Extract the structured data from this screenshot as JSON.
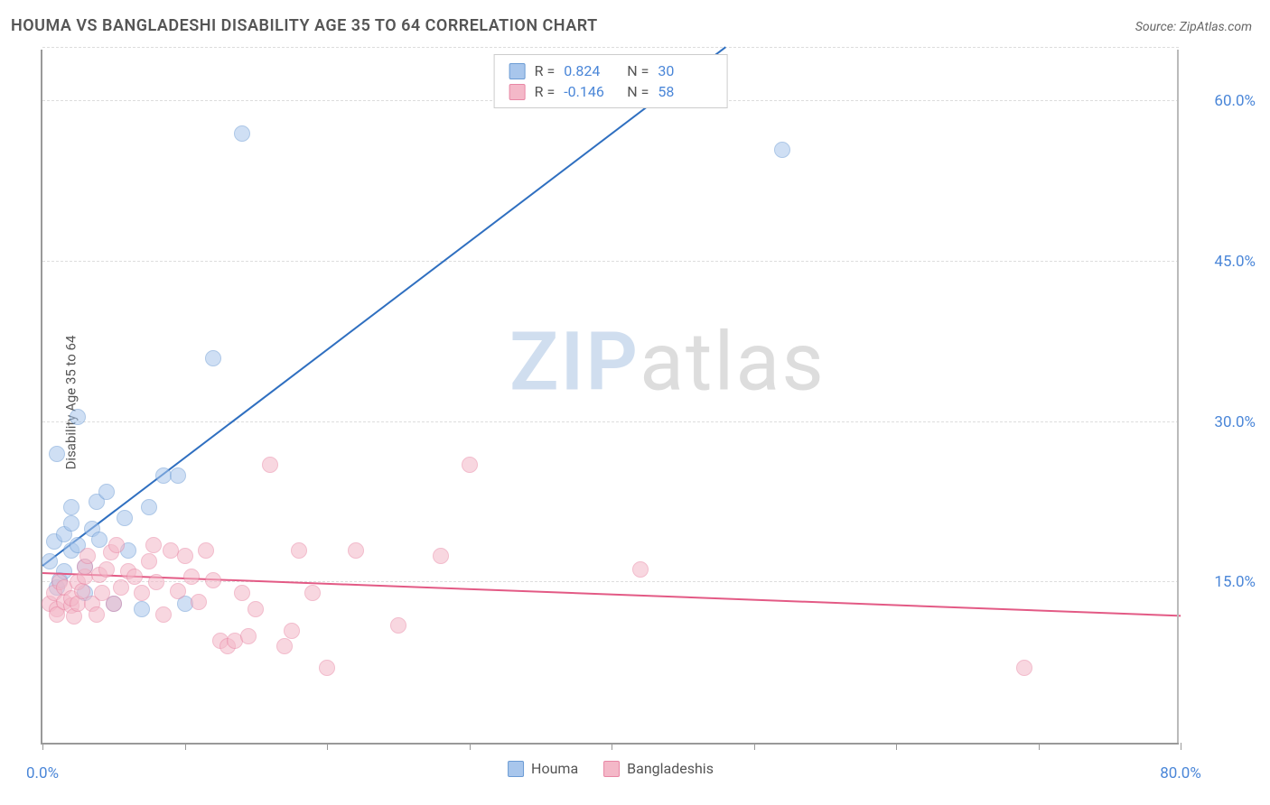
{
  "title": "HOUMA VS BANGLADESHI DISABILITY AGE 35 TO 64 CORRELATION CHART",
  "source": "Source: ZipAtlas.com",
  "y_axis_label": "Disability Age 35 to 64",
  "watermark": {
    "prefix": "ZIP",
    "suffix": "atlas"
  },
  "chart": {
    "type": "scatter",
    "background_color": "#ffffff",
    "grid_color": "#dddddd",
    "axis_color": "#999999",
    "xlim": [
      0,
      80
    ],
    "ylim": [
      0,
      65
    ],
    "x_ticks": [
      0,
      10,
      20,
      30,
      40,
      50,
      60,
      70,
      80
    ],
    "x_tick_labels": {
      "0": "0.0%",
      "80": "80.0%"
    },
    "y_gridlines": [
      15,
      30,
      45,
      60,
      65
    ],
    "y_tick_labels": {
      "15": "15.0%",
      "30": "30.0%",
      "45": "45.0%",
      "60": "60.0%"
    },
    "tick_label_color": "#4a86d8",
    "tick_label_fontsize": 17,
    "title_fontsize": 18,
    "title_color": "#555555",
    "marker_radius": 9,
    "marker_opacity": 0.55,
    "series": [
      {
        "name": "Houma",
        "color_fill": "#a8c6ec",
        "color_stroke": "#6b9bd4",
        "r": "0.824",
        "n": "30",
        "trend": {
          "x1": 0,
          "y1": 16.5,
          "x2": 48,
          "y2": 65,
          "color": "#2f6fc0",
          "width": 2
        },
        "points": [
          [
            0.5,
            17
          ],
          [
            0.8,
            18.8
          ],
          [
            1,
            14.5
          ],
          [
            1,
            27
          ],
          [
            1.2,
            15.2
          ],
          [
            1.5,
            19.5
          ],
          [
            1.5,
            16
          ],
          [
            2,
            20.5
          ],
          [
            2,
            18
          ],
          [
            2,
            22
          ],
          [
            2.5,
            18.5
          ],
          [
            3,
            14
          ],
          [
            3,
            16.5
          ],
          [
            3.5,
            20
          ],
          [
            3.8,
            22.5
          ],
          [
            4,
            19
          ],
          [
            4.5,
            23.5
          ],
          [
            5,
            13
          ],
          [
            5.8,
            21
          ],
          [
            6,
            18
          ],
          [
            7,
            12.5
          ],
          [
            7.5,
            22
          ],
          [
            8.5,
            25
          ],
          [
            9.5,
            25
          ],
          [
            10,
            13
          ],
          [
            2.5,
            30.5
          ],
          [
            12,
            36
          ],
          [
            14,
            57
          ],
          [
            52,
            55.5
          ]
        ]
      },
      {
        "name": "Bangladeshis",
        "color_fill": "#f4b8c8",
        "color_stroke": "#e886a4",
        "r": "-0.146",
        "n": "58",
        "trend": {
          "x1": 0,
          "y1": 15.8,
          "x2": 80,
          "y2": 11.8,
          "color": "#e35a85",
          "width": 2
        },
        "points": [
          [
            0.5,
            13
          ],
          [
            0.8,
            14
          ],
          [
            1,
            12.5
          ],
          [
            1,
            12
          ],
          [
            1.2,
            15
          ],
          [
            1.5,
            13.2
          ],
          [
            1.5,
            14.5
          ],
          [
            2,
            12.8
          ],
          [
            2,
            13.5
          ],
          [
            2.2,
            11.8
          ],
          [
            2.5,
            15
          ],
          [
            2.5,
            13
          ],
          [
            2.8,
            14.2
          ],
          [
            3,
            15.5
          ],
          [
            3,
            16.5
          ],
          [
            3.2,
            17.5
          ],
          [
            3.5,
            13
          ],
          [
            3.8,
            12
          ],
          [
            4,
            15.7
          ],
          [
            4.2,
            14
          ],
          [
            4.5,
            16.2
          ],
          [
            4.8,
            17.8
          ],
          [
            5,
            13
          ],
          [
            5.2,
            18.5
          ],
          [
            5.5,
            14.5
          ],
          [
            6,
            16
          ],
          [
            6.5,
            15.5
          ],
          [
            7,
            14
          ],
          [
            7.5,
            17
          ],
          [
            7.8,
            18.5
          ],
          [
            8,
            15
          ],
          [
            8.5,
            12
          ],
          [
            9,
            18
          ],
          [
            9.5,
            14.2
          ],
          [
            10,
            17.5
          ],
          [
            10.5,
            15.5
          ],
          [
            11,
            13.2
          ],
          [
            11.5,
            18
          ],
          [
            12,
            15.2
          ],
          [
            12.5,
            9.5
          ],
          [
            13,
            9
          ],
          [
            13.5,
            9.5
          ],
          [
            14,
            14
          ],
          [
            14.5,
            10
          ],
          [
            15,
            12.5
          ],
          [
            16,
            26
          ],
          [
            17,
            9
          ],
          [
            17.5,
            10.5
          ],
          [
            18,
            18
          ],
          [
            19,
            14
          ],
          [
            20,
            7
          ],
          [
            22,
            18
          ],
          [
            25,
            11
          ],
          [
            28,
            17.5
          ],
          [
            30,
            26
          ],
          [
            42,
            16.2
          ],
          [
            69,
            7
          ]
        ]
      }
    ],
    "legend_top_labels": {
      "r": "R =",
      "n": "N ="
    },
    "legend_bottom": [
      {
        "label": "Houma",
        "swatch": "#a8c6ec",
        "border": "#6b9bd4"
      },
      {
        "label": "Bangladeshis",
        "swatch": "#f4b8c8",
        "border": "#e886a4"
      }
    ]
  }
}
